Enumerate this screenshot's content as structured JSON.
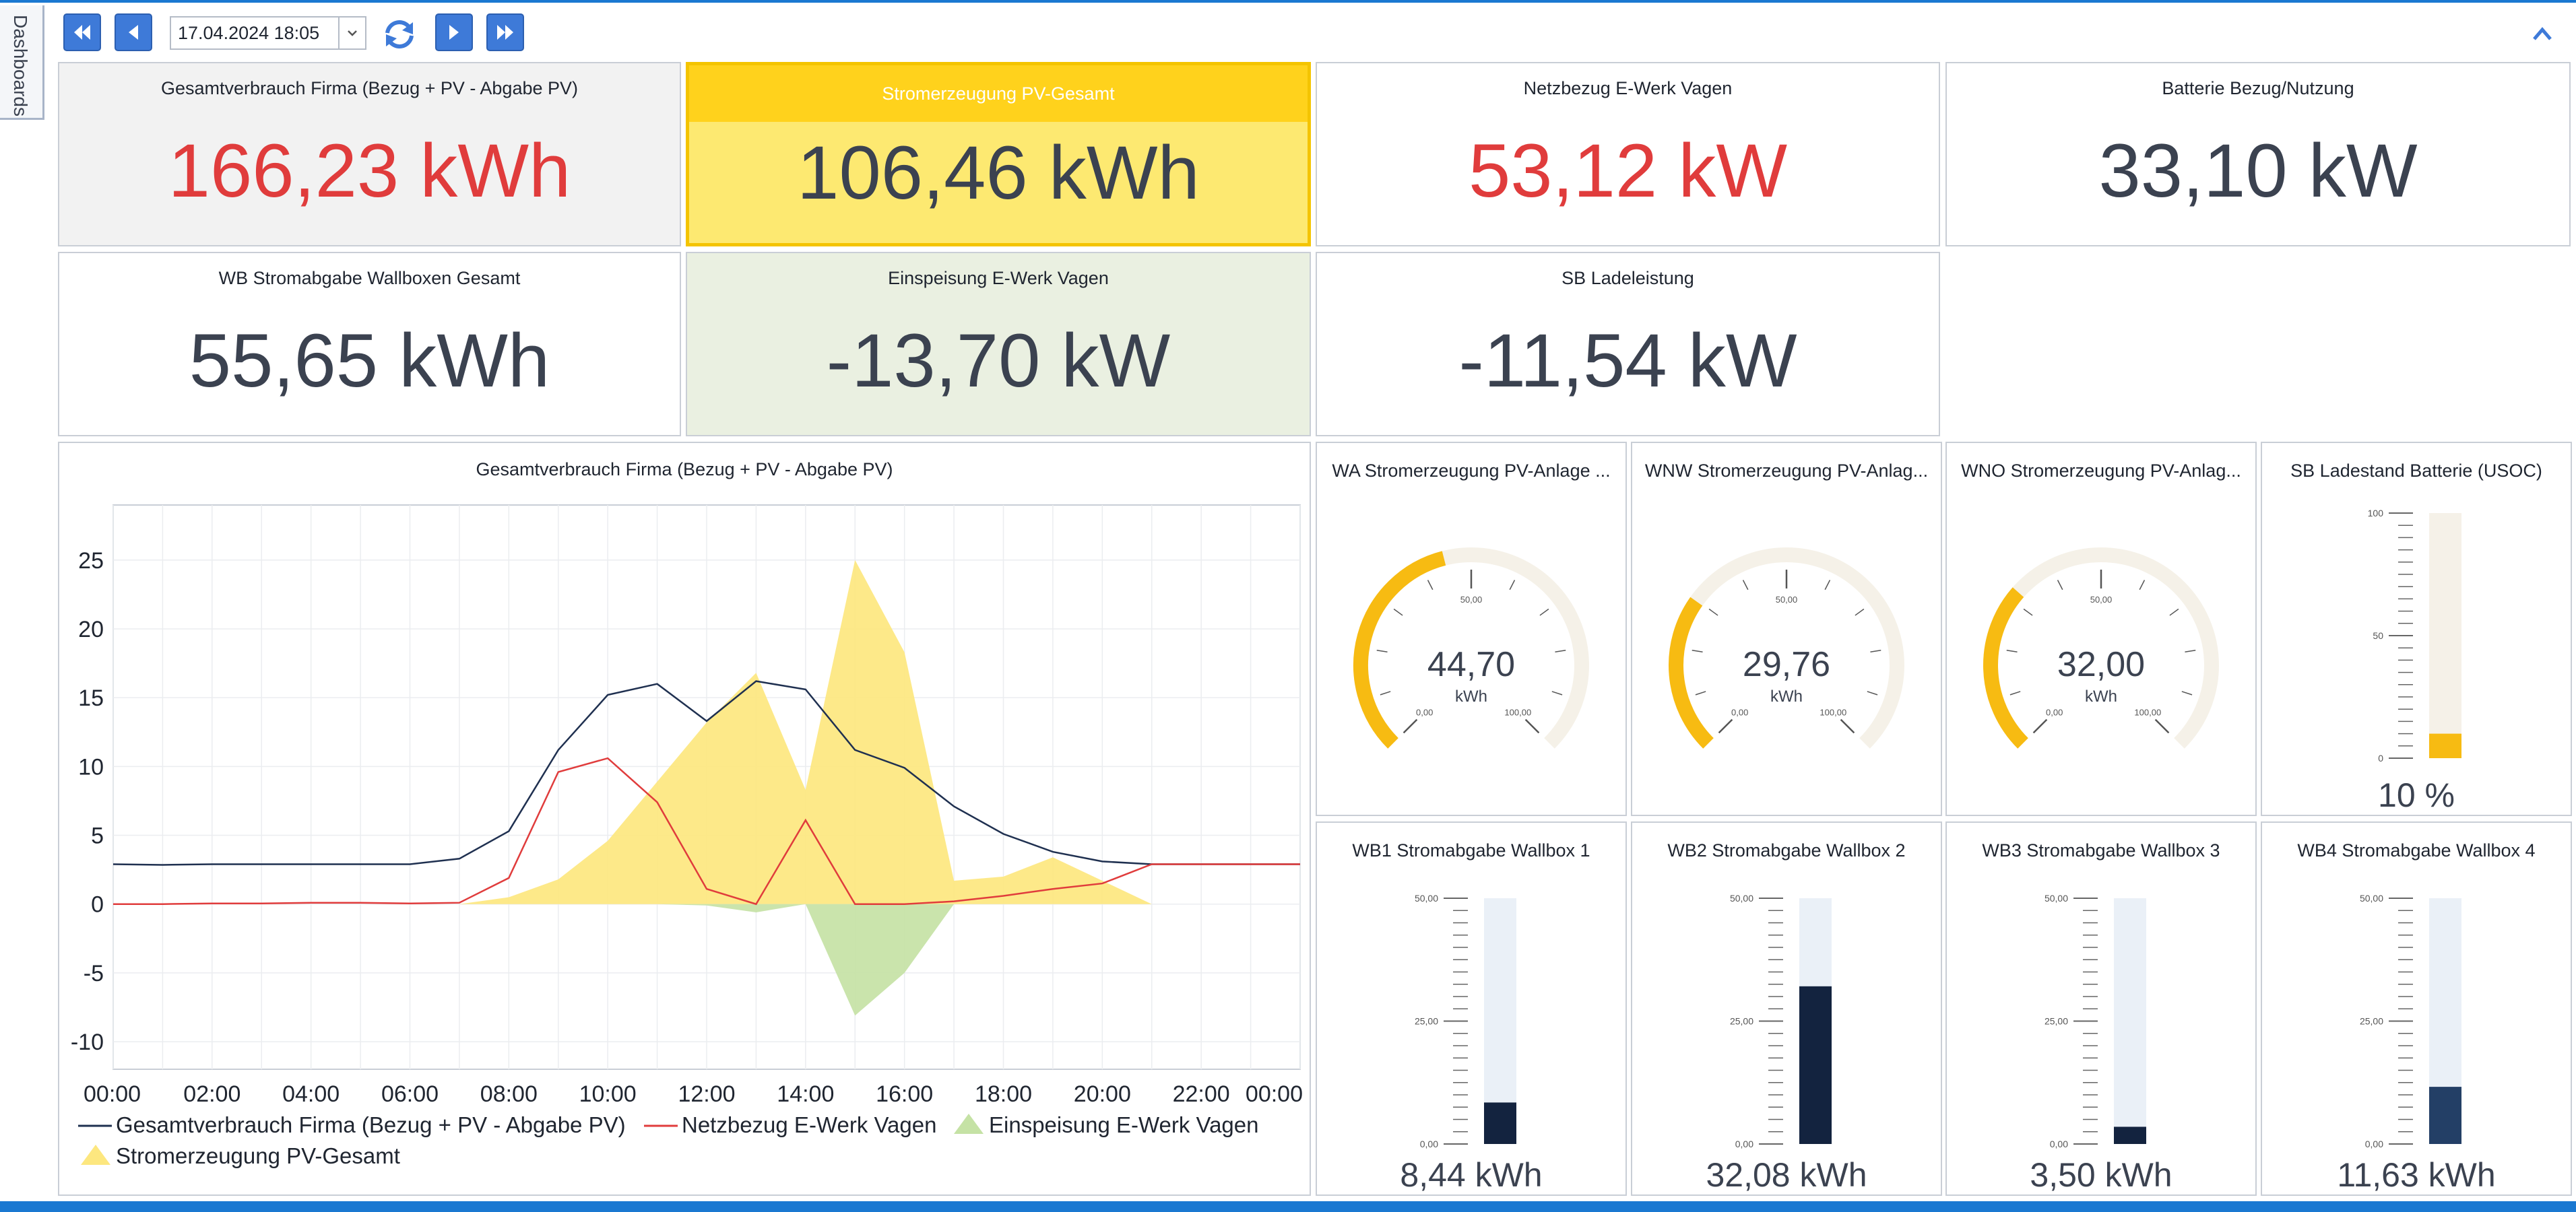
{
  "sidebar": {
    "tab_label": "Dashboards"
  },
  "toolbar": {
    "date_value": "17.04.2024 18:05",
    "icons": [
      "first-icon",
      "previous-icon",
      "chevron-down-icon",
      "refresh-icon",
      "next-icon",
      "last-icon",
      "collapse-up-icon"
    ]
  },
  "colors": {
    "accent_blue": "#1a78d1",
    "kpi_red": "#e03c3c",
    "pv_yellow": "#ffd21c",
    "feed_green": "#c5e2a5",
    "gauge_fill": "#f7bb12",
    "bar_dark": "#13233f"
  },
  "kpis": [
    {
      "title": "Gesamtverbrauch Firma (Bezug + PV - Abgabe PV)",
      "value": "166,23 kWh",
      "color": "#e03c3c"
    },
    {
      "title": "Stromerzeugung PV-Gesamt",
      "value": "106,46 kWh",
      "color": "#3b4250"
    },
    {
      "title": "Netzbezug E-Werk Vagen",
      "value": "53,12 kW",
      "color": "#e03c3c"
    },
    {
      "title": "Batterie Bezug/Nutzung",
      "value": "33,10 kW",
      "color": "#3b4250"
    },
    {
      "title": "WB Stromabgabe Wallboxen Gesamt",
      "value": "55,65 kWh",
      "color": "#3b4250"
    },
    {
      "title": "Einspeisung E-Werk Vagen",
      "value": "-13,70 kW",
      "color": "#3b4250"
    },
    {
      "title": "SB Ladeleistung",
      "value": "-11,54 kW",
      "color": "#3b4250"
    }
  ],
  "chart_data": {
    "type": "line",
    "title": "Gesamtverbrauch Firma (Bezug + PV - Abgabe PV)",
    "xlabel": "",
    "ylabel": "",
    "x_ticks": [
      "00:00",
      "02:00",
      "04:00",
      "06:00",
      "08:00",
      "10:00",
      "12:00",
      "14:00",
      "16:00",
      "18:00",
      "20:00",
      "22:00",
      "00:00"
    ],
    "y_ticks": [
      25,
      20,
      15,
      10,
      5,
      0,
      -5,
      -10
    ],
    "xlim": [
      0,
      24
    ],
    "ylim": [
      -12,
      29
    ],
    "grid": true,
    "legend_position": "bottom",
    "series": [
      {
        "name": "Gesamtverbrauch Firma (Bezug + PV - Abgabe PV)",
        "kind": "line",
        "color": "#1f3050",
        "x": [
          0,
          1,
          2,
          3,
          4,
          5,
          6,
          7,
          8,
          9,
          10,
          11,
          12,
          13,
          14,
          15,
          16,
          17,
          18,
          19,
          20,
          21,
          22,
          23,
          24
        ],
        "y": [
          2.9,
          2.85,
          2.9,
          2.9,
          2.9,
          2.9,
          2.9,
          3.3,
          5.3,
          11.2,
          15.2,
          16.0,
          13.3,
          16.2,
          15.6,
          11.2,
          9.9,
          7.1,
          5.1,
          3.8,
          3.1,
          2.9,
          2.9,
          2.9,
          2.9
        ]
      },
      {
        "name": "Netzbezug E-Werk Vagen",
        "kind": "line",
        "color": "#e03c3c",
        "x": [
          0,
          1,
          2,
          3,
          4,
          5,
          6,
          7,
          8,
          9,
          10,
          11,
          12,
          13,
          14,
          15,
          16,
          17,
          18,
          19,
          20,
          21,
          22,
          23,
          24
        ],
        "y": [
          0.0,
          0.0,
          0.05,
          0.05,
          0.1,
          0.1,
          0.05,
          0.1,
          1.9,
          9.6,
          10.6,
          7.4,
          1.1,
          0.0,
          6.1,
          0.0,
          0.0,
          0.2,
          0.6,
          1.1,
          1.5,
          2.9,
          2.9,
          2.9,
          2.9
        ]
      },
      {
        "name": "Einspeisung E-Werk Vagen",
        "kind": "area",
        "color": "#c5e2a5",
        "x": [
          11,
          12,
          13,
          14,
          15,
          16,
          17
        ],
        "y": [
          0,
          -0.1,
          -0.6,
          0.0,
          -8.1,
          -5.0,
          0
        ]
      },
      {
        "name": "Stromerzeugung PV-Gesamt",
        "kind": "area",
        "color": "#fde77f",
        "x": [
          7,
          8,
          9,
          10,
          11,
          12,
          13,
          14,
          15,
          16,
          17,
          18,
          19,
          20,
          21
        ],
        "y": [
          0,
          0.5,
          1.8,
          4.6,
          8.9,
          13.2,
          16.8,
          8.3,
          25.0,
          18.3,
          1.7,
          2.0,
          3.4,
          1.7,
          0
        ]
      }
    ]
  },
  "gauges": [
    {
      "title": "WA Stromerzeugung PV-Anlage ...",
      "value": 44.7,
      "value_label": "44,70",
      "unit": "kWh",
      "min_label": "0,00",
      "mid_label": "50,00",
      "max_label": "100,00",
      "max": 100
    },
    {
      "title": "WNW Stromerzeugung PV-Anlag...",
      "value": 29.76,
      "value_label": "29,76",
      "unit": "kWh",
      "min_label": "0,00",
      "mid_label": "50,00",
      "max_label": "100,00",
      "max": 100
    },
    {
      "title": "WNO Stromerzeugung PV-Anlag...",
      "value": 32.0,
      "value_label": "32,00",
      "unit": "kWh",
      "min_label": "0,00",
      "mid_label": "50,00",
      "max_label": "100,00",
      "max": 100
    }
  ],
  "battery": {
    "title": "SB Ladestand Batterie (USOC)",
    "value": 10,
    "value_label": "10 %",
    "max": 100,
    "scale_labels": [
      "100",
      "50",
      "0"
    ]
  },
  "wallboxes": [
    {
      "title": "WB1 Stromabgabe Wallbox 1",
      "value": 8.44,
      "value_label": "8,44 kWh",
      "max": 50,
      "scale_labels": [
        "50,00",
        "25,00",
        "0,00"
      ]
    },
    {
      "title": "WB2 Stromabgabe Wallbox 2",
      "value": 32.08,
      "value_label": "32,08 kWh",
      "max": 50,
      "scale_labels": [
        "50,00",
        "25,00",
        "0,00"
      ]
    },
    {
      "title": "WB3 Stromabgabe Wallbox 3",
      "value": 3.5,
      "value_label": "3,50 kWh",
      "max": 50,
      "scale_labels": [
        "50,00",
        "25,00",
        "0,00"
      ]
    },
    {
      "title": "WB4 Stromabgabe Wallbox 4",
      "value": 11.63,
      "value_label": "11,63 kWh",
      "max": 50,
      "scale_labels": [
        "50,00",
        "25,00",
        "0,00"
      ]
    }
  ]
}
